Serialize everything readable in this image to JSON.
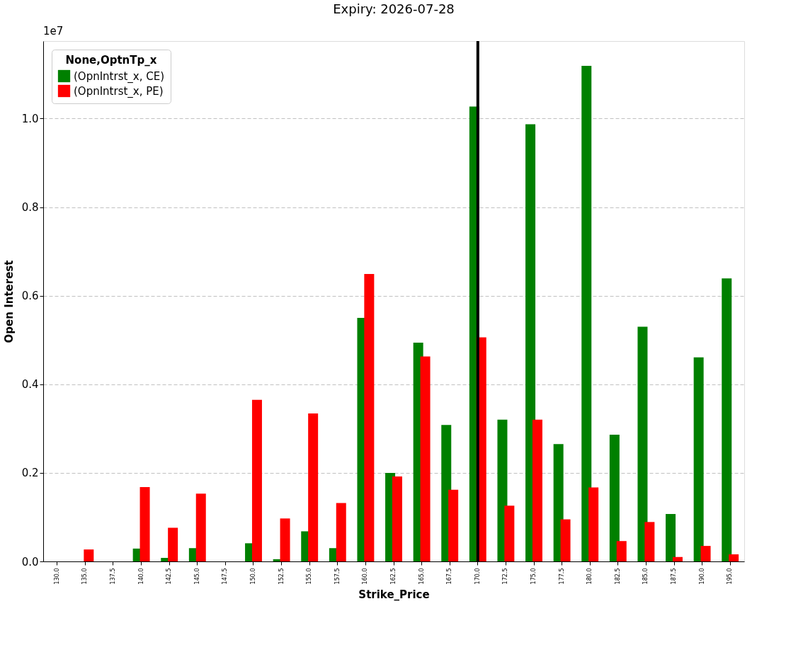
{
  "chart_data": {
    "type": "bar",
    "title": "Expiry: 2026-07-28",
    "xlabel": "Strike_Price",
    "ylabel": "Open Interest",
    "legend_title": "None,OptnTp_x",
    "categories": [
      "130.0",
      "135.0",
      "137.5",
      "140.0",
      "142.5",
      "145.0",
      "147.5",
      "150.0",
      "152.5",
      "155.0",
      "157.5",
      "160.0",
      "162.5",
      "165.0",
      "167.5",
      "170.0",
      "172.5",
      "175.0",
      "177.5",
      "180.0",
      "182.5",
      "185.0",
      "187.5",
      "190.0",
      "195.0"
    ],
    "series": [
      {
        "name": "(OpnIntrst_x, CE)",
        "color": "#008000",
        "values": [
          0,
          0,
          0,
          0.029,
          0.008,
          0.03,
          0,
          0.041,
          0.005,
          0.068,
          0.03,
          0.55,
          0.2,
          0.494,
          0.308,
          1.027,
          0.32,
          0.987,
          0.265,
          1.119,
          0.286,
          0.53,
          0.107,
          0.461,
          0.639
        ]
      },
      {
        "name": "(OpnIntrst_x, PE)",
        "color": "#ff0000",
        "values": [
          0,
          0.027,
          0,
          0.168,
          0.076,
          0.153,
          0,
          0.365,
          0.097,
          0.334,
          0.132,
          0.649,
          0.192,
          0.463,
          0.162,
          0.506,
          0.126,
          0.32,
          0.095,
          0.167,
          0.046,
          0.089,
          0.01,
          0.035,
          0.016
        ]
      }
    ],
    "ylim": [
      0,
      1.175
    ],
    "yticks": [
      {
        "value": 0,
        "label": "0.0"
      },
      {
        "value": 0.2,
        "label": "0.2"
      },
      {
        "value": 0.4,
        "label": "0.4"
      },
      {
        "value": 0.6,
        "label": "0.6"
      },
      {
        "value": 0.8,
        "label": "0.8"
      },
      {
        "value": 1.0,
        "label": "1.0"
      }
    ],
    "ref_lines": [
      {
        "axis": "x",
        "value": "170.0",
        "color": "#000000"
      }
    ],
    "annotations": [
      "1e7"
    ],
    "grid": "y",
    "legend": "top left"
  }
}
